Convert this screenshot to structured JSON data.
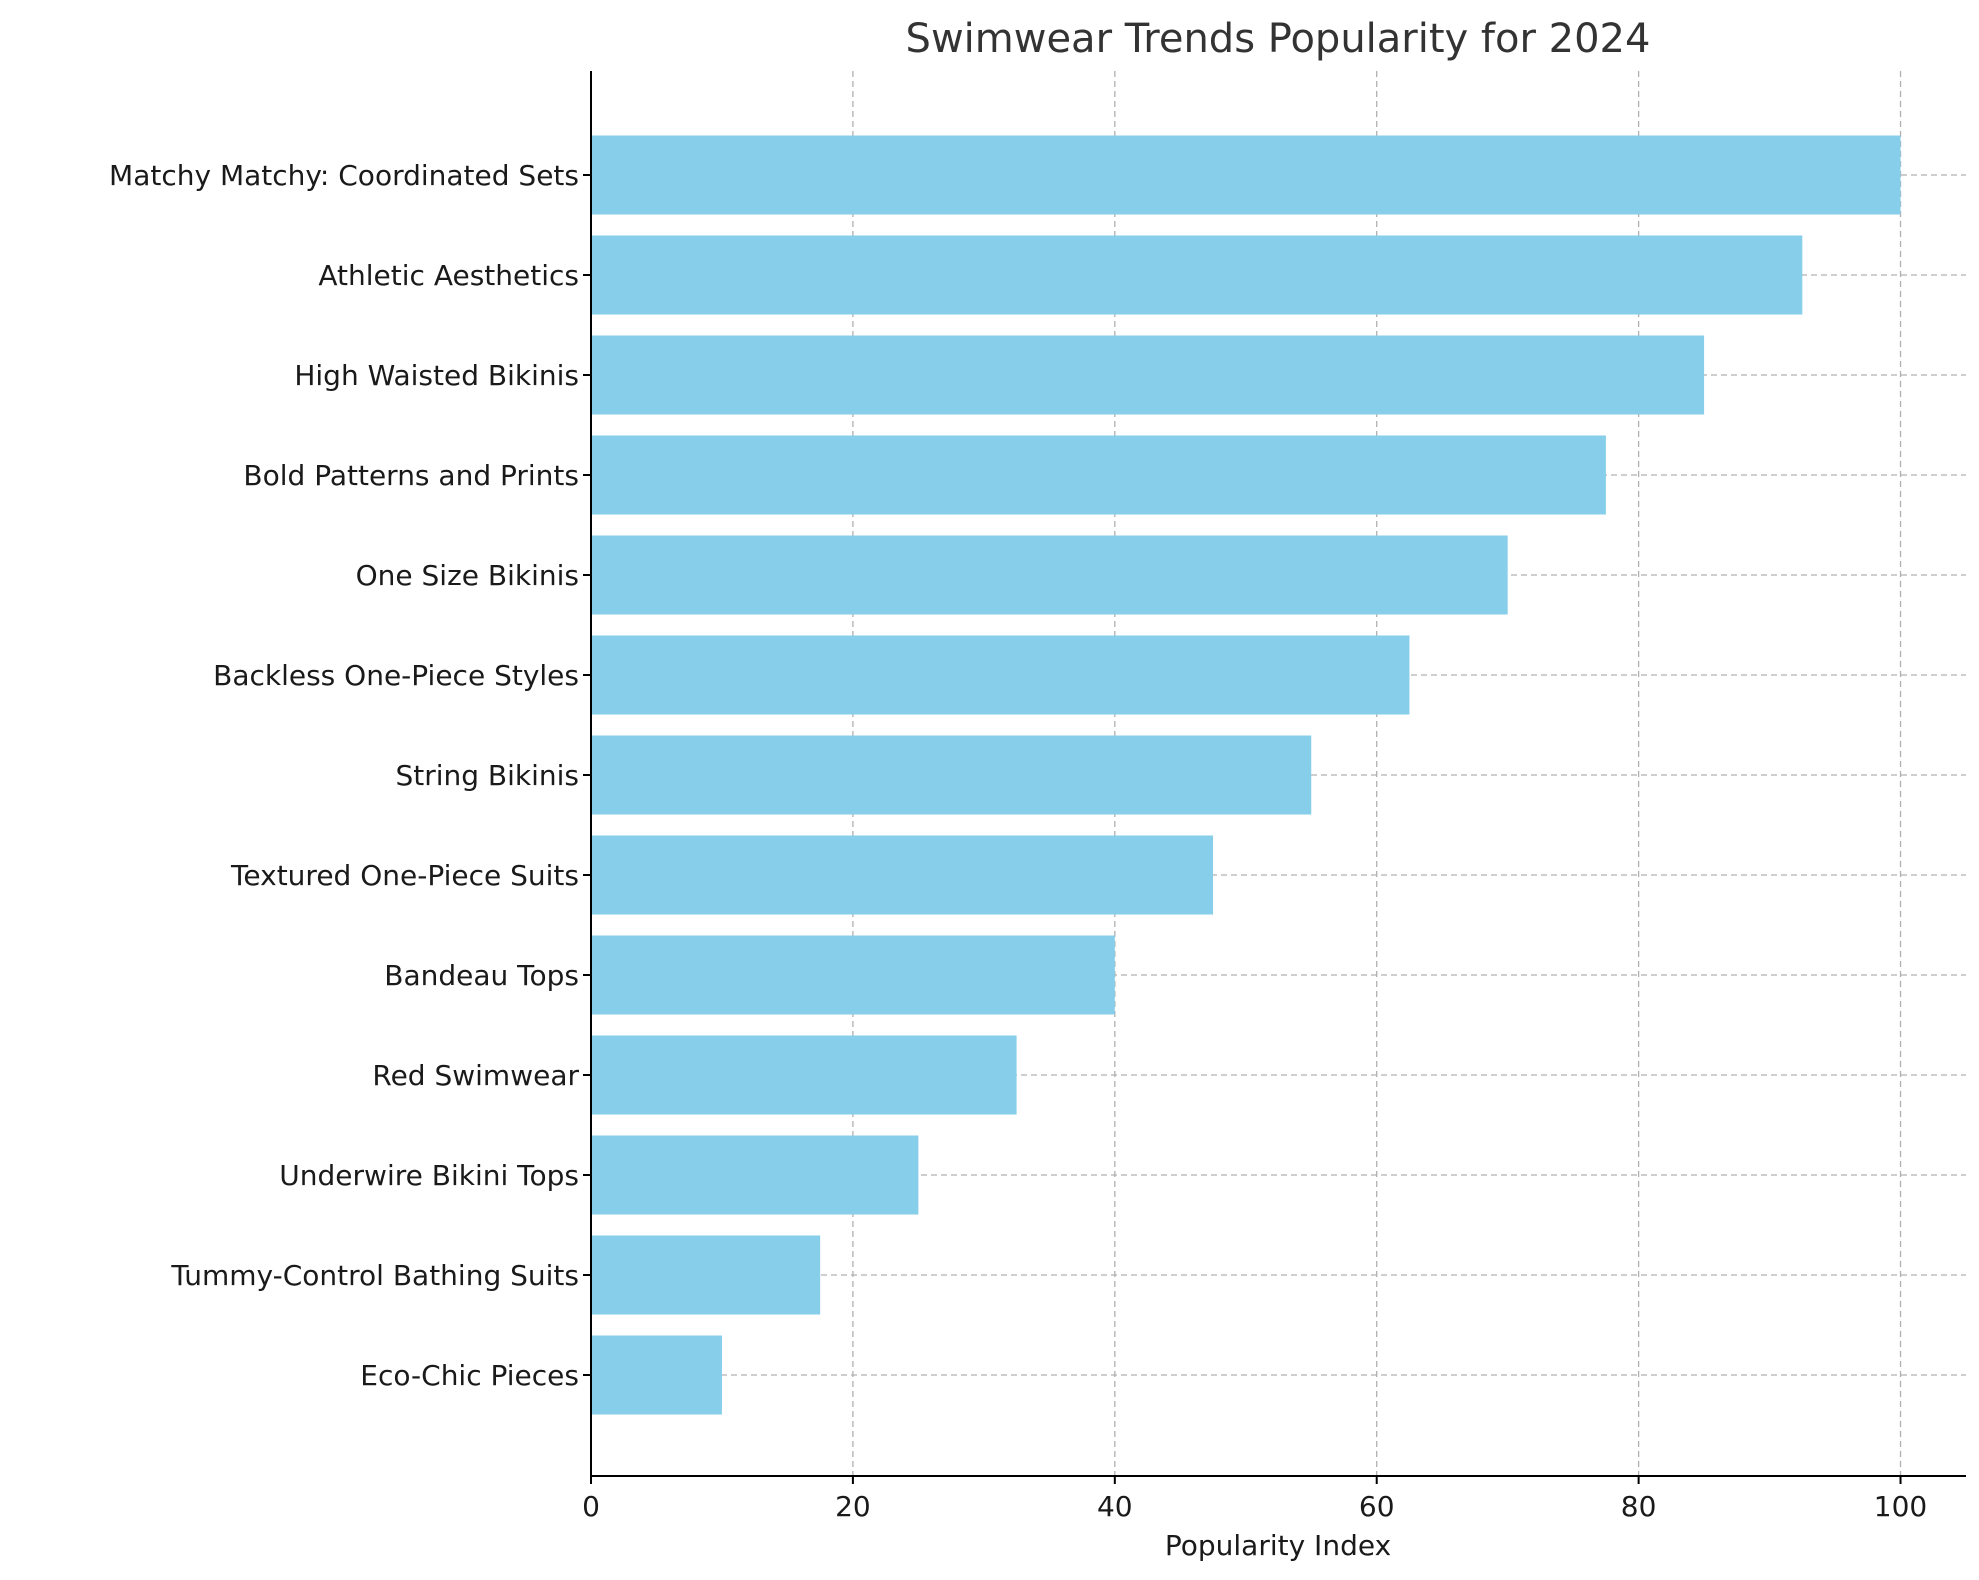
{
  "chart_data": {
    "type": "bar",
    "orientation": "horizontal",
    "title": "Swimwear Trends Popularity for 2024",
    "xlabel": "Popularity Index",
    "ylabel": "",
    "xlim": [
      0,
      105
    ],
    "xticks": [
      0,
      20,
      40,
      60,
      80,
      100
    ],
    "categories": [
      "Matchy Matchy: Coordinated Sets",
      "Athletic Aesthetics",
      "High Waisted Bikinis",
      "Bold Patterns and Prints",
      "One Size Bikinis",
      "Backless One-Piece Styles",
      "String Bikinis",
      "Textured One-Piece Suits",
      "Bandeau Tops",
      "Red Swimwear",
      "Underwire Bikini Tops",
      "Tummy-Control Bathing Suits",
      "Eco-Chic Pieces"
    ],
    "values": [
      100,
      92.5,
      85,
      77.5,
      70,
      62.5,
      55,
      47.5,
      40,
      32.5,
      25,
      17.5,
      10
    ],
    "bar_color": "#87ceeb",
    "grid": true,
    "legend": "none"
  }
}
